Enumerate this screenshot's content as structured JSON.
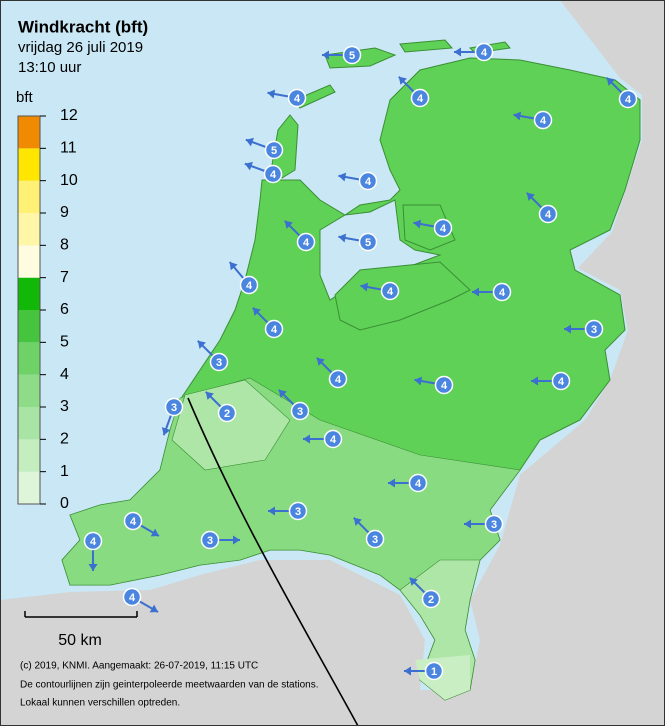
{
  "header": {
    "title": "Windkracht (bft)",
    "date": "vrijdag 26 juli 2019",
    "time": "13:10 uur"
  },
  "legend": {
    "unit": "bft",
    "levels": [
      0,
      1,
      2,
      3,
      4,
      5,
      6,
      7,
      8,
      9,
      10,
      11,
      12
    ],
    "colors": [
      "#dff5da",
      "#c4edc0",
      "#a8e4a3",
      "#8edc88",
      "#6fd267",
      "#47c43e",
      "#12b807",
      "#fffce0",
      "#fff6a8",
      "#fff176",
      "#ffe600",
      "#ffc000"
    ],
    "top_color": "#f08a00"
  },
  "stations": [
    5,
    4,
    4,
    4,
    4,
    4,
    5,
    4,
    4,
    4,
    4,
    4,
    5,
    4,
    4,
    4,
    4,
    3,
    3,
    4,
    4,
    4,
    3,
    2,
    3,
    4,
    4,
    3,
    4,
    3,
    3,
    3,
    4,
    4,
    2,
    1
  ],
  "scale": {
    "label": "50 km"
  },
  "footer": [
    "(c) 2019, KNMI. Aangemaakt: 26-07-2019, 11:15 UTC",
    "De contourlijnen zijn geinterpoleerde meetwaarden van de stations.",
    "Lokaal kunnen verschillen optreden."
  ]
}
